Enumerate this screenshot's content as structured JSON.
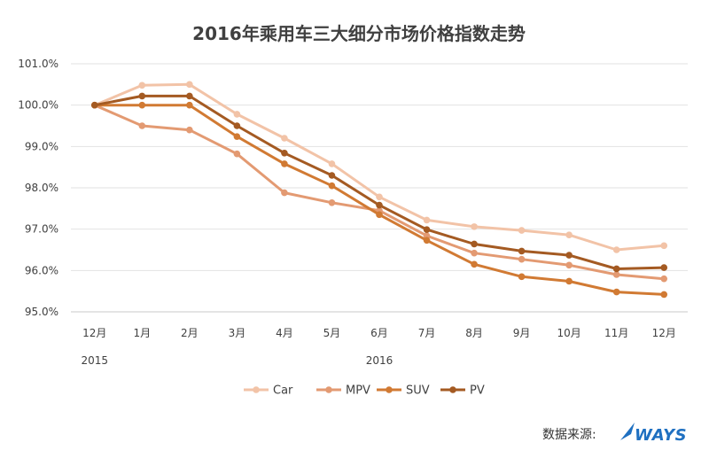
{
  "chart_data": {
    "type": "line",
    "title": "2016年乘用车三大细分市场价格指数走势",
    "categories": [
      "12月",
      "1月",
      "2月",
      "3月",
      "4月",
      "5月",
      "6月",
      "7月",
      "8月",
      "9月",
      "10月",
      "11月",
      "12月"
    ],
    "year_labels": [
      {
        "label": "2015",
        "category_index": 0
      },
      {
        "label": "2016",
        "category_index": 6
      }
    ],
    "y_ticks": [
      "95.0%",
      "96.0%",
      "97.0%",
      "98.0%",
      "99.0%",
      "100.0%",
      "101.0%"
    ],
    "ylim": [
      95.0,
      101.0
    ],
    "y_unit": "%",
    "grid": "horizontal",
    "legend_position": "bottom",
    "xlabel": "",
    "ylabel": "",
    "series": [
      {
        "name": "Car",
        "color": "#f2c3a7",
        "values": [
          100.0,
          100.48,
          100.5,
          99.78,
          99.2,
          98.58,
          97.78,
          97.22,
          97.06,
          96.97,
          96.86,
          96.5,
          96.6
        ]
      },
      {
        "name": "MPV",
        "color": "#e39a72",
        "values": [
          100.0,
          99.5,
          99.4,
          98.82,
          97.88,
          97.64,
          97.45,
          96.84,
          96.42,
          96.27,
          96.13,
          95.9,
          95.8
        ]
      },
      {
        "name": "SUV",
        "color": "#d17a33",
        "values": [
          100.0,
          100.0,
          100.0,
          99.24,
          98.58,
          98.05,
          97.35,
          96.73,
          96.15,
          95.85,
          95.74,
          95.48,
          95.42
        ]
      },
      {
        "name": "PV",
        "color": "#a45a22",
        "values": [
          100.0,
          100.22,
          100.22,
          99.5,
          98.84,
          98.3,
          97.58,
          96.99,
          96.64,
          96.47,
          96.37,
          96.04,
          96.07
        ]
      }
    ]
  },
  "source": {
    "label": "数据来源:",
    "logo_text": "WAYS",
    "logo_color": "#1f70c1"
  }
}
